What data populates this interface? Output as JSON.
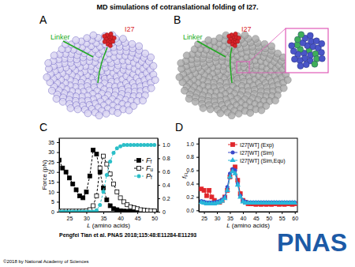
{
  "title": "MD simulations of cotranslational folding of I27.",
  "panel_labels": [
    "A",
    "B",
    "C",
    "D"
  ],
  "structure_labels": {
    "linker": "Linker",
    "protein": "I27"
  },
  "chart_data": [
    {
      "type": "line",
      "x_label": "L (amino acids)",
      "y_label": "Force (pN)",
      "x": [
        22,
        23,
        24,
        25,
        26,
        27,
        28,
        29,
        30,
        31,
        32,
        33,
        34,
        35,
        36,
        37,
        38,
        39,
        40,
        41,
        42,
        43,
        44,
        45,
        46,
        47,
        48,
        49,
        50
      ],
      "xlim": [
        22,
        51
      ],
      "xticks": [
        25,
        30,
        35,
        40,
        45,
        50
      ],
      "ylim": [
        0,
        37
      ],
      "yticks": [
        0,
        5,
        10,
        15,
        20,
        25,
        30,
        35
      ],
      "y2lim": [
        0,
        1.1
      ],
      "y2ticks": [
        0,
        0.2,
        0.4,
        0.6,
        0.8,
        {
          "value": 1,
          "label": "1.0"
        }
      ],
      "legend": "center right",
      "series": [
        {
          "name": "Ff",
          "color": "#000000",
          "marker": "square",
          "line_style": "dashed",
          "values": [
            26,
            22,
            20,
            17,
            14,
            11,
            8,
            7,
            10,
            18,
            31,
            29,
            20,
            12,
            6,
            3,
            1.5,
            1,
            0.5,
            0.3,
            0.2,
            0.2,
            0.1,
            0.1,
            0.1,
            0.1,
            0.1,
            0.1,
            0.1
          ]
        },
        {
          "name": "Fu",
          "color": "#000000",
          "marker": "square-open",
          "line_style": "dashed",
          "values": [
            0.3,
            0.3,
            0.3,
            0.3,
            0.3,
            0.3,
            0.3,
            0.3,
            0.5,
            1,
            3,
            8,
            22,
            28,
            24,
            19,
            14,
            10,
            7,
            5,
            3.5,
            2.5,
            2,
            1.5,
            1,
            0.8,
            0.6,
            0.5,
            0.4
          ]
        },
        {
          "name": "Pf",
          "color": "#2bbfc8",
          "marker": "circle",
          "line_style": "dashed",
          "axis": "y2",
          "values": [
            0,
            0,
            0,
            0,
            0,
            0,
            0,
            0,
            0,
            0,
            0,
            0.02,
            0.1,
            0.3,
            0.55,
            0.75,
            0.88,
            0.95,
            0.98,
            1,
            1,
            1,
            1,
            1,
            1,
            1,
            1,
            1,
            1
          ]
        }
      ]
    },
    {
      "type": "line",
      "x_label": "L (amino acids)",
      "y_label": "fFL",
      "x": [
        24,
        25,
        26,
        27,
        28,
        29,
        30,
        31,
        32,
        33,
        34,
        35,
        36,
        37,
        38,
        39,
        40,
        41,
        42,
        43,
        44,
        45,
        46,
        47,
        48,
        49,
        50,
        51,
        52,
        53,
        54,
        55,
        56,
        57,
        58,
        59,
        60
      ],
      "xlim": [
        23,
        61
      ],
      "xticks": [
        25,
        30,
        35,
        40,
        45,
        50,
        55,
        60
      ],
      "ylim": [
        -0.02,
        1.08
      ],
      "yticks": [
        {
          "value": 0,
          "label": "0.0"
        },
        0.2,
        0.4,
        0.6,
        0.8,
        {
          "value": 1,
          "label": "1.0"
        }
      ],
      "legend": "upper right",
      "series": [
        {
          "name": "I27[WT] (Exp)",
          "color": "#e0262b",
          "marker": "square",
          "line_style": "solid",
          "values": [
            0.32,
            0.3,
            0.22,
            0.3,
            0.2,
            0.15,
            0.12,
            0.12,
            0.15,
            0.2,
            0.3,
            0.5,
            0.6,
            0.65,
            0.45,
            0.25,
            0.15,
            0.12,
            0.1,
            0.1,
            0.1,
            0.09,
            0.1,
            0.09,
            0.1,
            0.09,
            0.1,
            0.09,
            0.1,
            0.1,
            0.09,
            0.1,
            0.09,
            0.1,
            0.1,
            0.09,
            0.1
          ]
        },
        {
          "name": "I27[WT] (Sim)",
          "color": "#3a49c9",
          "marker": "circle",
          "line_style": "solid",
          "values": [
            0.14,
            0.13,
            0.12,
            0.12,
            0.12,
            0.12,
            0.13,
            0.14,
            0.16,
            0.2,
            0.35,
            0.55,
            0.62,
            0.6,
            0.4,
            0.22,
            0.15,
            0.13,
            0.12,
            0.12,
            0.12,
            0.12,
            0.12,
            0.12,
            0.12,
            0.12,
            0.12,
            0.12,
            0.12,
            0.12,
            0.12,
            0.12,
            0.12,
            0.12,
            0.12,
            0.12,
            0.12
          ]
        },
        {
          "name": "I27[WT] (Sim,Equ)",
          "color": "#29b6d9",
          "marker": "triangle",
          "line_style": "solid",
          "values": [
            0.12,
            0.11,
            0.1,
            0.1,
            0.1,
            0.1,
            0.11,
            0.12,
            0.14,
            0.18,
            0.3,
            0.5,
            0.58,
            0.55,
            0.38,
            0.2,
            0.13,
            0.11,
            0.11,
            0.11,
            0.11,
            0.11,
            0.11,
            0.11,
            0.11,
            0.11,
            0.11,
            0.11,
            0.11,
            0.11,
            0.11,
            0.11,
            0.11,
            0.11,
            0.11,
            0.11,
            0.11
          ]
        }
      ]
    }
  ],
  "citation": "Pengfei Tian et al. PNAS 2018;115:48:E11284-E11293",
  "logo": "PNAS",
  "copyright": "©2018 by National Academy of Sciences"
}
